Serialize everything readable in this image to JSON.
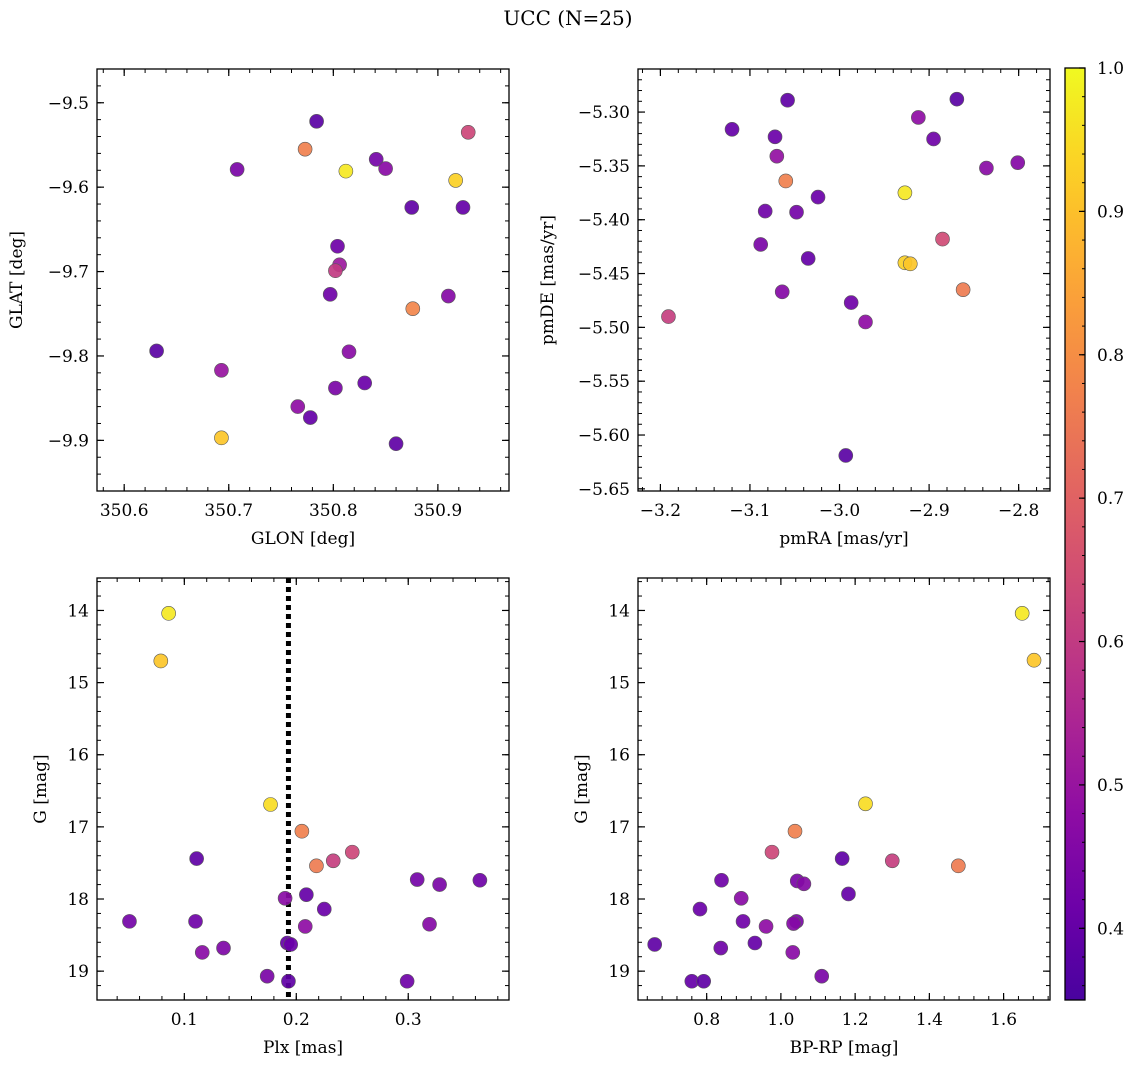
{
  "figure": {
    "title": "UCC (N=25)"
  },
  "colorbar": {
    "colormap": "plasma",
    "range": [
      0.35,
      1.0
    ],
    "ticks": [
      0.4,
      0.5,
      0.6,
      0.7,
      0.8,
      0.9,
      1.0
    ],
    "tick_labels": [
      "0.4",
      "0.5",
      "0.6",
      "0.7",
      "0.8",
      "0.9",
      "1.0"
    ]
  },
  "chart_data": [
    {
      "type": "scatter",
      "xlabel": "GLON [deg]",
      "ylabel": "GLAT [deg]",
      "xlim": [
        350.574,
        350.968
      ],
      "ylim": [
        -9.96,
        -9.46
      ],
      "y_inverted": false,
      "xticks": [
        350.6,
        350.7,
        350.8,
        350.9
      ],
      "xtick_labels": [
        "350.6",
        "350.7",
        "350.8",
        "350.9"
      ],
      "yticks": [
        -9.5,
        -9.6,
        -9.7,
        -9.8,
        -9.9
      ],
      "ytick_labels": [
        "−9.5",
        "−9.6",
        "−9.7",
        "−9.8",
        "−9.9"
      ],
      "points": [
        {
          "x": 350.784,
          "y": -9.522,
          "c": 0.38
        },
        {
          "x": 350.929,
          "y": -9.535,
          "c": 0.63
        },
        {
          "x": 350.773,
          "y": -9.555,
          "c": 0.77
        },
        {
          "x": 350.841,
          "y": -9.567,
          "c": 0.43
        },
        {
          "x": 350.85,
          "y": -9.578,
          "c": 0.47
        },
        {
          "x": 350.708,
          "y": -9.579,
          "c": 0.44
        },
        {
          "x": 350.812,
          "y": -9.581,
          "c": 0.97
        },
        {
          "x": 350.917,
          "y": -9.592,
          "c": 0.93
        },
        {
          "x": 350.875,
          "y": -9.624,
          "c": 0.39
        },
        {
          "x": 350.924,
          "y": -9.624,
          "c": 0.4
        },
        {
          "x": 350.804,
          "y": -9.67,
          "c": 0.42
        },
        {
          "x": 350.806,
          "y": -9.692,
          "c": 0.51
        },
        {
          "x": 350.802,
          "y": -9.699,
          "c": 0.6
        },
        {
          "x": 350.797,
          "y": -9.727,
          "c": 0.42
        },
        {
          "x": 350.91,
          "y": -9.729,
          "c": 0.46
        },
        {
          "x": 350.876,
          "y": -9.744,
          "c": 0.78
        },
        {
          "x": 350.631,
          "y": -9.794,
          "c": 0.38
        },
        {
          "x": 350.815,
          "y": -9.795,
          "c": 0.47
        },
        {
          "x": 350.693,
          "y": -9.817,
          "c": 0.5
        },
        {
          "x": 350.83,
          "y": -9.832,
          "c": 0.41
        },
        {
          "x": 350.802,
          "y": -9.838,
          "c": 0.44
        },
        {
          "x": 350.766,
          "y": -9.86,
          "c": 0.48
        },
        {
          "x": 350.778,
          "y": -9.873,
          "c": 0.4
        },
        {
          "x": 350.693,
          "y": -9.897,
          "c": 0.91
        },
        {
          "x": 350.86,
          "y": -9.904,
          "c": 0.39
        }
      ]
    },
    {
      "type": "scatter",
      "xlabel": "pmRA [mas/yr]",
      "ylabel": "pmDE [mas/yr]",
      "xlim": [
        -3.225,
        -2.765
      ],
      "ylim": [
        -5.652,
        -5.26
      ],
      "y_inverted": false,
      "xticks": [
        -3.2,
        -3.1,
        -3.0,
        -2.9,
        -2.8
      ],
      "xtick_labels": [
        "−3.2",
        "−3.1",
        "−3.0",
        "−2.9",
        "−2.8"
      ],
      "yticks": [
        -5.3,
        -5.35,
        -5.4,
        -5.45,
        -5.5,
        -5.55,
        -5.6,
        -5.65
      ],
      "ytick_labels": [
        "−5.30",
        "−5.35",
        "−5.40",
        "−5.45",
        "−5.50",
        "−5.55",
        "−5.60",
        "−5.65"
      ],
      "points": [
        {
          "x": -3.058,
          "y": -5.289,
          "c": 0.39
        },
        {
          "x": -2.869,
          "y": -5.288,
          "c": 0.38
        },
        {
          "x": -2.912,
          "y": -5.305,
          "c": 0.48
        },
        {
          "x": -3.12,
          "y": -5.316,
          "c": 0.4
        },
        {
          "x": -3.072,
          "y": -5.323,
          "c": 0.41
        },
        {
          "x": -2.895,
          "y": -5.325,
          "c": 0.42
        },
        {
          "x": -3.07,
          "y": -5.341,
          "c": 0.49
        },
        {
          "x": -2.801,
          "y": -5.347,
          "c": 0.46
        },
        {
          "x": -2.836,
          "y": -5.352,
          "c": 0.47
        },
        {
          "x": -3.06,
          "y": -5.364,
          "c": 0.77
        },
        {
          "x": -2.927,
          "y": -5.375,
          "c": 0.97
        },
        {
          "x": -3.024,
          "y": -5.379,
          "c": 0.41
        },
        {
          "x": -3.083,
          "y": -5.392,
          "c": 0.42
        },
        {
          "x": -3.048,
          "y": -5.393,
          "c": 0.43
        },
        {
          "x": -2.885,
          "y": -5.418,
          "c": 0.64
        },
        {
          "x": -3.088,
          "y": -5.423,
          "c": 0.44
        },
        {
          "x": -3.035,
          "y": -5.436,
          "c": 0.4
        },
        {
          "x": -2.927,
          "y": -5.44,
          "c": 0.93
        },
        {
          "x": -2.921,
          "y": -5.441,
          "c": 0.91
        },
        {
          "x": -2.862,
          "y": -5.465,
          "c": 0.76
        },
        {
          "x": -3.064,
          "y": -5.467,
          "c": 0.46
        },
        {
          "x": -2.987,
          "y": -5.477,
          "c": 0.42
        },
        {
          "x": -3.191,
          "y": -5.49,
          "c": 0.61
        },
        {
          "x": -2.971,
          "y": -5.495,
          "c": 0.48
        },
        {
          "x": -2.993,
          "y": -5.619,
          "c": 0.38
        }
      ]
    },
    {
      "type": "scatter",
      "xlabel": "Plx [mas]",
      "ylabel": "G [mag]",
      "xlim": [
        0.022,
        0.39
      ],
      "ylim": [
        19.4,
        13.55
      ],
      "y_inverted": true,
      "vline": {
        "x": 0.193,
        "style": "dotted"
      },
      "xticks": [
        0.1,
        0.2,
        0.3
      ],
      "xtick_labels": [
        "0.1",
        "0.2",
        "0.3"
      ],
      "yticks": [
        14,
        15,
        16,
        17,
        18,
        19
      ],
      "ytick_labels": [
        "14",
        "15",
        "16",
        "17",
        "18",
        "19"
      ],
      "points": [
        {
          "x": 0.086,
          "y": 14.04,
          "c": 0.97
        },
        {
          "x": 0.079,
          "y": 14.7,
          "c": 0.91
        },
        {
          "x": 0.177,
          "y": 16.69,
          "c": 0.95
        },
        {
          "x": 0.205,
          "y": 17.06,
          "c": 0.77
        },
        {
          "x": 0.25,
          "y": 17.35,
          "c": 0.63
        },
        {
          "x": 0.111,
          "y": 17.44,
          "c": 0.39
        },
        {
          "x": 0.233,
          "y": 17.47,
          "c": 0.61
        },
        {
          "x": 0.218,
          "y": 17.54,
          "c": 0.76
        },
        {
          "x": 0.308,
          "y": 17.73,
          "c": 0.43
        },
        {
          "x": 0.364,
          "y": 17.74,
          "c": 0.42
        },
        {
          "x": 0.328,
          "y": 17.8,
          "c": 0.44
        },
        {
          "x": 0.209,
          "y": 17.94,
          "c": 0.4
        },
        {
          "x": 0.19,
          "y": 17.99,
          "c": 0.47
        },
        {
          "x": 0.225,
          "y": 18.14,
          "c": 0.41
        },
        {
          "x": 0.051,
          "y": 18.31,
          "c": 0.43
        },
        {
          "x": 0.11,
          "y": 18.31,
          "c": 0.42
        },
        {
          "x": 0.319,
          "y": 18.35,
          "c": 0.46
        },
        {
          "x": 0.208,
          "y": 18.38,
          "c": 0.48
        },
        {
          "x": 0.192,
          "y": 18.61,
          "c": 0.4
        },
        {
          "x": 0.195,
          "y": 18.63,
          "c": 0.41
        },
        {
          "x": 0.135,
          "y": 18.68,
          "c": 0.45
        },
        {
          "x": 0.116,
          "y": 18.74,
          "c": 0.47
        },
        {
          "x": 0.174,
          "y": 19.07,
          "c": 0.44
        },
        {
          "x": 0.299,
          "y": 19.14,
          "c": 0.42
        },
        {
          "x": 0.193,
          "y": 19.14,
          "c": 0.39
        }
      ]
    },
    {
      "type": "scatter",
      "xlabel": "BP-RP [mag]",
      "ylabel": "G [mag]",
      "xlim": [
        0.615,
        1.725
      ],
      "ylim": [
        19.4,
        13.55
      ],
      "y_inverted": true,
      "xticks": [
        0.8,
        1.0,
        1.2,
        1.4,
        1.6
      ],
      "xtick_labels": [
        "0.8",
        "1.0",
        "1.2",
        "1.4",
        "1.6"
      ],
      "yticks": [
        14,
        15,
        16,
        17,
        18,
        19
      ],
      "ytick_labels": [
        "14",
        "15",
        "16",
        "17",
        "18",
        "19"
      ],
      "points": [
        {
          "x": 1.65,
          "y": 14.04,
          "c": 0.97
        },
        {
          "x": 1.682,
          "y": 14.69,
          "c": 0.91
        },
        {
          "x": 1.228,
          "y": 16.68,
          "c": 0.95
        },
        {
          "x": 1.038,
          "y": 17.06,
          "c": 0.77
        },
        {
          "x": 0.976,
          "y": 17.35,
          "c": 0.63
        },
        {
          "x": 1.165,
          "y": 17.44,
          "c": 0.39
        },
        {
          "x": 1.3,
          "y": 17.47,
          "c": 0.61
        },
        {
          "x": 1.478,
          "y": 17.54,
          "c": 0.76
        },
        {
          "x": 0.84,
          "y": 17.74,
          "c": 0.42
        },
        {
          "x": 1.044,
          "y": 17.75,
          "c": 0.44
        },
        {
          "x": 1.062,
          "y": 17.79,
          "c": 0.46
        },
        {
          "x": 1.182,
          "y": 17.93,
          "c": 0.4
        },
        {
          "x": 0.893,
          "y": 17.99,
          "c": 0.47
        },
        {
          "x": 0.782,
          "y": 18.14,
          "c": 0.41
        },
        {
          "x": 0.898,
          "y": 18.31,
          "c": 0.42
        },
        {
          "x": 1.042,
          "y": 18.31,
          "c": 0.44
        },
        {
          "x": 1.034,
          "y": 18.34,
          "c": 0.46
        },
        {
          "x": 0.96,
          "y": 18.38,
          "c": 0.48
        },
        {
          "x": 0.93,
          "y": 18.61,
          "c": 0.4
        },
        {
          "x": 0.66,
          "y": 18.63,
          "c": 0.39
        },
        {
          "x": 0.838,
          "y": 18.68,
          "c": 0.42
        },
        {
          "x": 1.032,
          "y": 18.74,
          "c": 0.47
        },
        {
          "x": 1.11,
          "y": 19.07,
          "c": 0.44
        },
        {
          "x": 0.76,
          "y": 19.14,
          "c": 0.4
        },
        {
          "x": 0.792,
          "y": 19.14,
          "c": 0.39
        }
      ]
    }
  ]
}
